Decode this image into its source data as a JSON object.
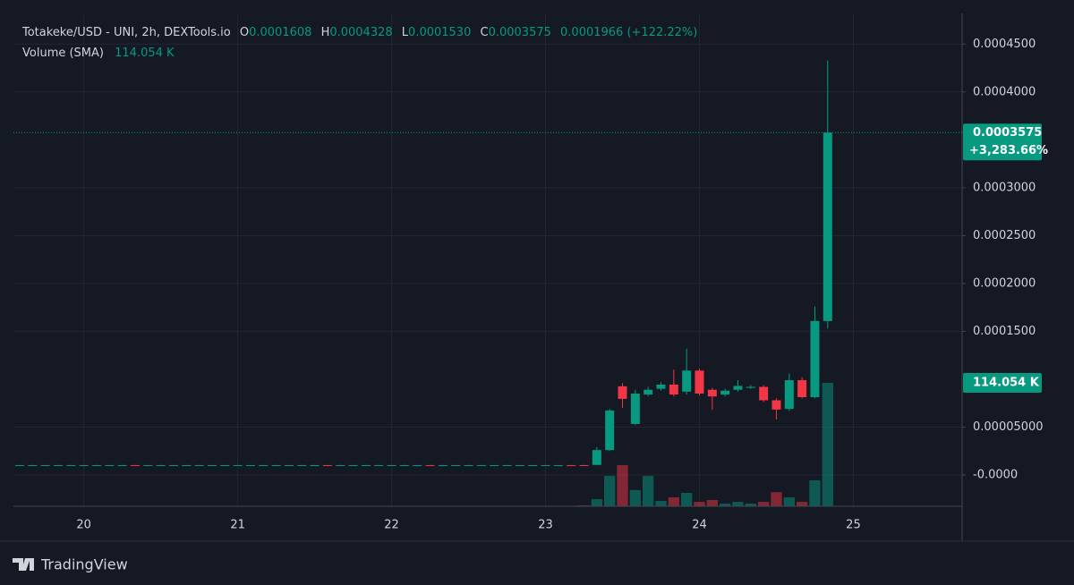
{
  "chart_data": {
    "type": "candlestick",
    "legend": {
      "title": "Totakeke/USD - UNI, 2h, DEXTools.io",
      "ohlc": [
        {
          "key": "O",
          "value": "0.0001608"
        },
        {
          "key": "H",
          "value": "0.0004328"
        },
        {
          "key": "L",
          "value": "0.0001530"
        },
        {
          "key": "C",
          "value": "0.0003575"
        }
      ],
      "change": "0.0001966 (+122.22%)",
      "volume_title": "Volume (SMA)",
      "volume_value": "114.054 K"
    },
    "last_price_label": "0.0003575",
    "last_change_label": "+3,283.66%",
    "last_volume_label": "114.054 K",
    "up_color": "#089981",
    "down_color": "#f23645",
    "grid": true,
    "categories": [
      null,
      null,
      null,
      null,
      null,
      "20",
      null,
      null,
      null,
      null,
      null,
      null,
      null,
      null,
      null,
      null,
      null,
      "21",
      null,
      null,
      null,
      null,
      null,
      null,
      null,
      null,
      null,
      null,
      null,
      "22",
      null,
      null,
      null,
      null,
      null,
      null,
      null,
      null,
      null,
      null,
      null,
      "23",
      null,
      null,
      null,
      null,
      null,
      null,
      null,
      null,
      null,
      null,
      null,
      "24",
      null,
      null,
      null,
      null,
      null,
      null,
      null,
      null,
      null,
      null,
      null,
      "25"
    ],
    "open": [
      1.03e-05,
      1.03e-05,
      1.03e-05,
      1.03e-05,
      1.03e-05,
      1.03e-05,
      1.03e-05,
      1.03e-05,
      1.03e-05,
      1.03e-05,
      1.03e-05,
      1.03e-05,
      1.03e-05,
      1.03e-05,
      1.03e-05,
      1.03e-05,
      1.03e-05,
      1.03e-05,
      1.03e-05,
      1.03e-05,
      1.03e-05,
      1.03e-05,
      1.03e-05,
      1.03e-05,
      1.03e-05,
      1.03e-05,
      1.03e-05,
      1.03e-05,
      1.03e-05,
      1.03e-05,
      1.03e-05,
      1.03e-05,
      1.03e-05,
      1.03e-05,
      1.03e-05,
      1.03e-05,
      1.03e-05,
      1.03e-05,
      1.03e-05,
      1.03e-05,
      1.03e-05,
      1.03e-05,
      1.03e-05,
      1.03e-05,
      1.03e-05,
      1.05e-05,
      2.6e-05,
      9.26e-05,
      5.33e-05,
      8.4e-05,
      9e-05,
      9.44e-05,
      8.7e-05,
      0.000109,
      8.9e-05,
      8.4e-05,
      8.9e-05,
      9.1e-05,
      9.2e-05,
      7.8e-05,
      6.9e-05,
      9.9e-05,
      8.13e-05,
      0.0001608,
      null,
      null
    ],
    "high": [
      1.05e-05,
      1.05e-05,
      1.05e-05,
      1.05e-05,
      1.05e-05,
      1.05e-05,
      1.05e-05,
      1.05e-05,
      1.05e-05,
      1.05e-05,
      1.05e-05,
      1.05e-05,
      1.05e-05,
      1.05e-05,
      1.05e-05,
      1.05e-05,
      1.05e-05,
      1.05e-05,
      1.05e-05,
      1.05e-05,
      1.05e-05,
      1.05e-05,
      1.05e-05,
      1.05e-05,
      1.05e-05,
      1.05e-05,
      1.05e-05,
      1.05e-05,
      1.05e-05,
      1.05e-05,
      1.05e-05,
      1.05e-05,
      1.05e-05,
      1.05e-05,
      1.05e-05,
      1.05e-05,
      1.05e-05,
      1.05e-05,
      1.05e-05,
      1.05e-05,
      1.05e-05,
      1.05e-05,
      1.05e-05,
      1.05e-05,
      1.05e-05,
      2.9e-05,
      6.9e-05,
      9.6e-05,
      8.9e-05,
      9.2e-05,
      9.7e-05,
      0.00011,
      0.000132,
      0.000111,
      9.1e-05,
      9e-05,
      9.9e-05,
      9.4e-05,
      9.4e-05,
      8e-05,
      0.000106,
      0.000102,
      0.000176,
      0.0004328,
      null,
      null
    ],
    "low": [
      9.8e-06,
      9.8e-06,
      9.8e-06,
      9.8e-06,
      9.8e-06,
      9.8e-06,
      9.8e-06,
      9.8e-06,
      9.8e-06,
      9.8e-06,
      9.8e-06,
      9.8e-06,
      9.8e-06,
      9.8e-06,
      9.8e-06,
      9.8e-06,
      9.8e-06,
      9.8e-06,
      9.8e-06,
      9.8e-06,
      9.8e-06,
      9.8e-06,
      9.8e-06,
      9.8e-06,
      9.8e-06,
      9.8e-06,
      9.8e-06,
      9.8e-06,
      9.8e-06,
      9.8e-06,
      9.8e-06,
      9.8e-06,
      9.8e-06,
      9.8e-06,
      9.8e-06,
      9.8e-06,
      9.8e-06,
      9.8e-06,
      9.8e-06,
      9.8e-06,
      9.8e-06,
      9.8e-06,
      9.8e-06,
      9.8e-06,
      9.5e-06,
      1e-05,
      2.5e-05,
      7e-05,
      5.2e-05,
      8.2e-05,
      8.8e-05,
      8.2e-05,
      8.4e-05,
      8.3e-05,
      6.8e-05,
      8.2e-05,
      8.7e-05,
      9e-05,
      7.6e-05,
      5.8e-05,
      6.7e-05,
      8e-05,
      8e-05,
      0.000153,
      null,
      null
    ],
    "close": [
      1.03e-05,
      1.03e-05,
      1.03e-05,
      1.03e-05,
      1.03e-05,
      1.03e-05,
      1.03e-05,
      1.03e-05,
      1.03e-05,
      9.9e-06,
      1.03e-05,
      1.03e-05,
      1.03e-05,
      1.03e-05,
      1.03e-05,
      1.03e-05,
      1.03e-05,
      1.03e-05,
      1.03e-05,
      1.03e-05,
      1.03e-05,
      1.03e-05,
      1.03e-05,
      1.03e-05,
      9.9e-06,
      1.03e-05,
      1.03e-05,
      1.03e-05,
      1.03e-05,
      1.03e-05,
      1.03e-05,
      1.03e-05,
      9.9e-06,
      1.03e-05,
      1.03e-05,
      1.03e-05,
      1.03e-05,
      1.03e-05,
      1.03e-05,
      1.03e-05,
      1.03e-05,
      1.03e-05,
      1.03e-05,
      9.9e-06,
      9.7e-06,
      2.6e-05,
      6.73e-05,
      7.95e-05,
      8.5e-05,
      8.9e-05,
      9.44e-05,
      8.4e-05,
      0.000109,
      8.5e-05,
      8.2e-05,
      8.8e-05,
      9.3e-05,
      9.2e-05,
      7.8e-05,
      6.83e-05,
      9.9e-05,
      8.13e-05,
      0.0001608,
      0.0003575,
      null,
      null
    ],
    "volume": [
      300,
      300,
      300,
      300,
      300,
      300,
      300,
      300,
      300,
      300,
      300,
      300,
      300,
      300,
      300,
      300,
      300,
      300,
      300,
      300,
      300,
      300,
      300,
      300,
      300,
      300,
      300,
      300,
      300,
      300,
      300,
      300,
      300,
      300,
      300,
      300,
      300,
      300,
      300,
      300,
      300,
      300,
      300,
      300,
      800,
      6600,
      28000,
      38000,
      15000,
      28000,
      5000,
      8300,
      12400,
      4100,
      5800,
      2500,
      4100,
      2500,
      4100,
      13000,
      8300,
      4100,
      24000,
      114054,
      null,
      null
    ],
    "ylim": [
      -3.27e-05,
      0.000482
    ],
    "yticks": [
      {
        "value": 0.00045,
        "label": "0.0004500"
      },
      {
        "value": 0.0004,
        "label": "0.0004000"
      },
      {
        "value": 0.0003,
        "label": "0.0003000"
      },
      {
        "value": 0.00025,
        "label": "0.0002500"
      },
      {
        "value": 0.0002,
        "label": "0.0002000"
      },
      {
        "value": 0.00015,
        "label": "0.0001500"
      },
      {
        "value": 5e-05,
        "label": "0.00005000"
      },
      {
        "value": 0,
        "label": "-0.0000"
      }
    ]
  },
  "footer": {
    "brand": "TradingView"
  }
}
